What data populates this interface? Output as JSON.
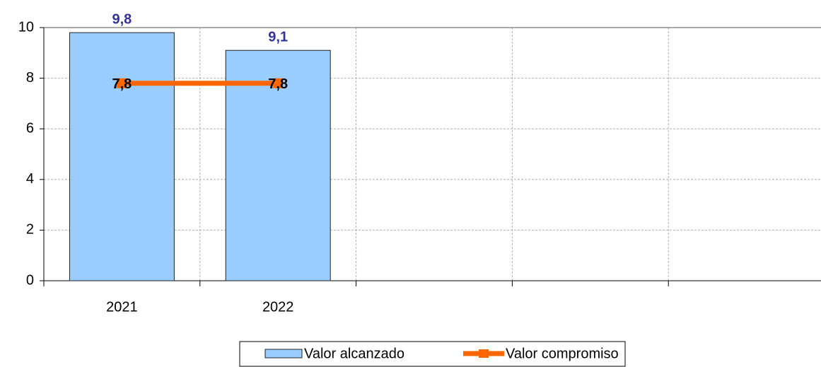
{
  "chart_data": {
    "type": "bar",
    "categories": [
      "2021",
      "2022",
      null,
      null,
      null
    ],
    "series": [
      {
        "name": "Valor alcanzado",
        "type": "bar",
        "color": "#99ccff",
        "values": [
          9.8,
          9.1,
          null,
          null,
          null
        ],
        "value_labels": [
          "9,8",
          "9,1",
          null,
          null,
          null
        ]
      },
      {
        "name": "Valor compromiso",
        "type": "line",
        "color": "#ff6600",
        "values": [
          7.8,
          7.8,
          null,
          null,
          null
        ],
        "value_labels": [
          "7,8",
          "7,8",
          null,
          null,
          null
        ]
      }
    ],
    "ylim": [
      0,
      10
    ],
    "yticks": [
      0,
      2,
      4,
      6,
      8,
      10
    ],
    "grid": true,
    "legend": "bottom"
  }
}
